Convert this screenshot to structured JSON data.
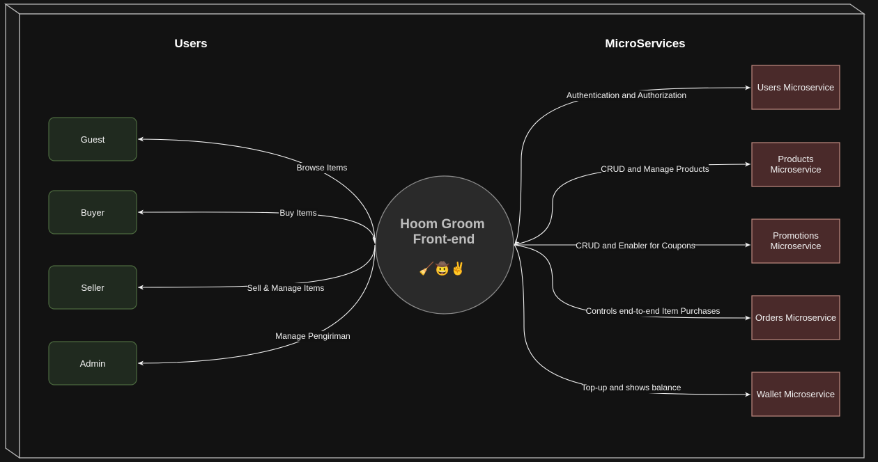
{
  "sections": {
    "users_title": "Users",
    "services_title": "MicroServices"
  },
  "hub": {
    "line1": "Hoom Groom",
    "line2": "Front-end",
    "emoji": "🧹🤠✌️"
  },
  "users": [
    {
      "label": "Guest",
      "edge_label": "Browse Items"
    },
    {
      "label": "Buyer",
      "edge_label": "Buy Items"
    },
    {
      "label": "Seller",
      "edge_label": "Sell & Manage Items"
    },
    {
      "label": "Admin",
      "edge_label": "Manage Pengiriman"
    }
  ],
  "services": [
    {
      "line1": "Users Microservice",
      "line2": "",
      "edge_label": "Authentication and Authorization"
    },
    {
      "line1": "Products",
      "line2": "Microservice",
      "edge_label": "CRUD and Manage Products"
    },
    {
      "line1": "Promotions",
      "line2": "Microservice",
      "edge_label": "CRUD and Enabler for Coupons"
    },
    {
      "line1": "Orders Microservice",
      "line2": "",
      "edge_label": "Controls end-to-end Item Purchases"
    },
    {
      "line1": "Wallet Microservice",
      "line2": "",
      "edge_label": "Top-up and shows balance"
    }
  ],
  "colors": {
    "user_fill": "#202a1f",
    "user_stroke": "#4c6a3f",
    "service_fill": "#4a2a2a",
    "service_stroke": "#c08a80",
    "hub_fill": "#2a2a2a",
    "hub_stroke": "#8a8a8a",
    "frame_fill": "#121212",
    "frame_stroke": "#b9b9b9"
  }
}
